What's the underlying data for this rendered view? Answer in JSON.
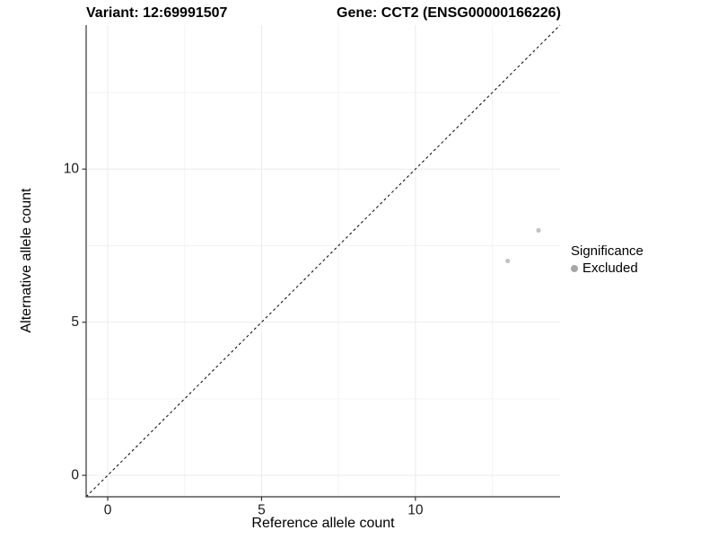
{
  "titles": {
    "variant": "Variant: 12:69991507",
    "gene": "Gene: CCT2 (ENSG00000166226)"
  },
  "legend": {
    "title": "Significance",
    "items": [
      {
        "label": "Excluded",
        "color": "#a6a6a6"
      }
    ]
  },
  "colors": {
    "point": "#c3c3c3",
    "legend_key": "#a6a6a6",
    "grid_major": "#ebebeb",
    "grid_minor": "#f3f3f3",
    "axis_line": "#333333",
    "tick_mark": "#333333",
    "tick_label": "#1a1a1a",
    "identity_line": "#000000",
    "background": "#ffffff"
  },
  "chart_data": {
    "type": "scatter",
    "title": "Variant: 12:69991507   Gene: CCT2 (ENSG00000166226)",
    "xlabel": "Reference allele count",
    "ylabel": "Alternative allele count",
    "xlim": [
      -0.7,
      14.7
    ],
    "ylim": [
      -0.7,
      14.7
    ],
    "x_major_ticks": [
      0,
      5,
      10
    ],
    "y_major_ticks": [
      0,
      5,
      10
    ],
    "x_minor_ticks": [
      2.5,
      7.5,
      12.5
    ],
    "y_minor_ticks": [
      2.5,
      7.5,
      12.5
    ],
    "grid": true,
    "identity_line": {
      "style": "dashed",
      "from": [
        -0.7,
        -0.7
      ],
      "to": [
        14.7,
        14.7
      ]
    },
    "series": [
      {
        "name": "Excluded",
        "points": [
          {
            "x": 13,
            "y": 7
          },
          {
            "x": 14,
            "y": 8
          }
        ]
      }
    ],
    "legend_position": "right"
  }
}
